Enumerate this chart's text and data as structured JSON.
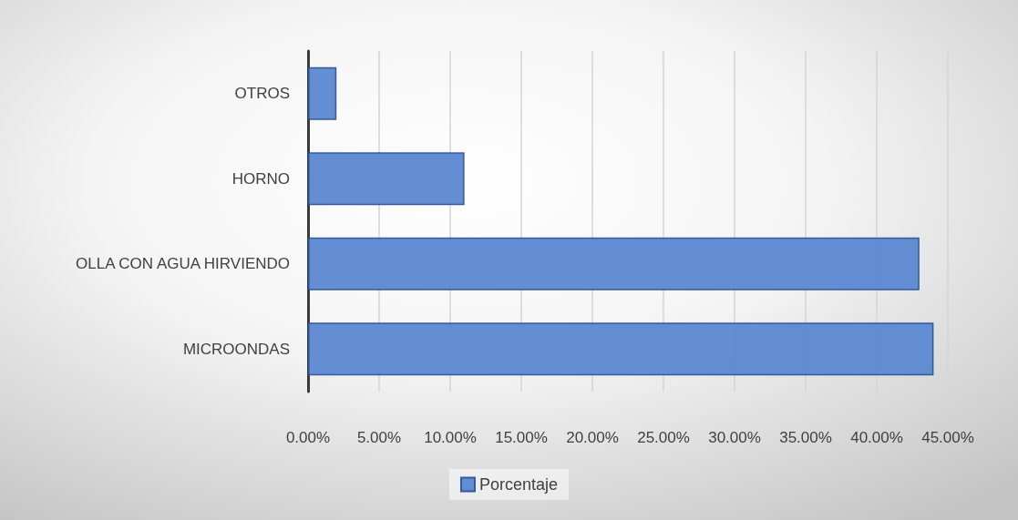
{
  "chart_data": {
    "type": "bar",
    "orientation": "horizontal",
    "categories": [
      "OTROS",
      "HORNO",
      "OLLA CON AGUA HIRVIENDO",
      "MICROONDAS"
    ],
    "series": [
      {
        "name": "Porcentaje",
        "color": "#5b88d1",
        "values": [
          2,
          11,
          43,
          44
        ]
      }
    ],
    "xlim": [
      0,
      45
    ],
    "xticks": [
      {
        "value": 0,
        "label": "0.00%"
      },
      {
        "value": 5,
        "label": "5.00%"
      },
      {
        "value": 10,
        "label": "10.00%"
      },
      {
        "value": 15,
        "label": "15.00%"
      },
      {
        "value": 20,
        "label": "20.00%"
      },
      {
        "value": 25,
        "label": "25.00%"
      },
      {
        "value": 30,
        "label": "30.00%"
      },
      {
        "value": 35,
        "label": "35.00%"
      },
      {
        "value": 40,
        "label": "40.00%"
      },
      {
        "value": 45,
        "label": "45.00%"
      }
    ],
    "grid": "x",
    "legend": "bottom"
  }
}
